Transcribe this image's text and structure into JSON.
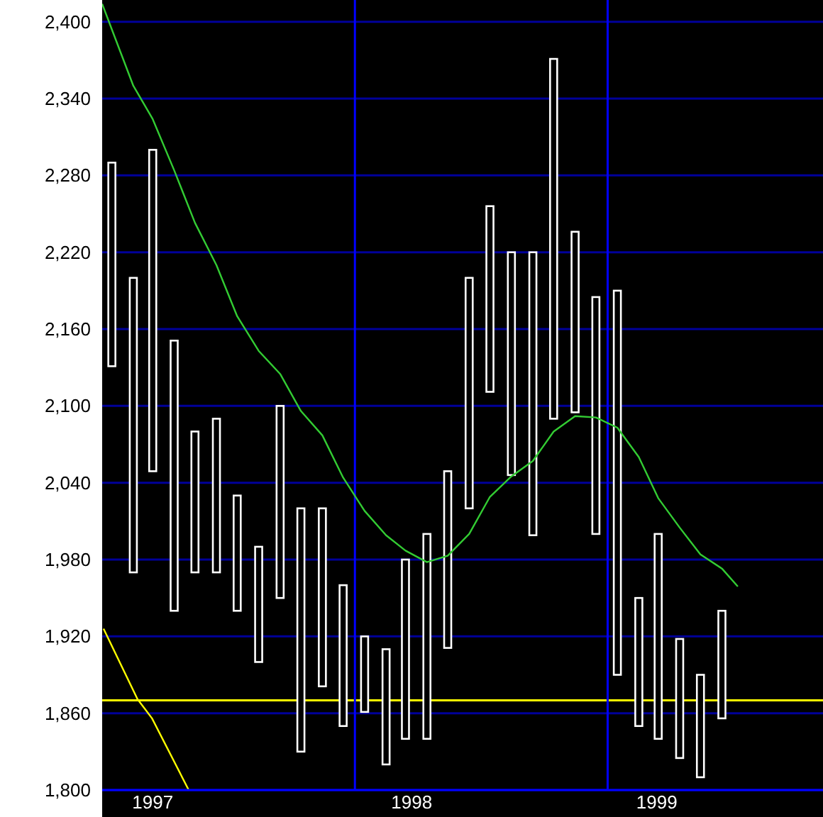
{
  "chart_data": {
    "type": "bar",
    "xlim": [
      "1997-01-01",
      "1999-11-08"
    ],
    "xticks": [
      {
        "value": "1997-03-15",
        "label": "1997"
      },
      {
        "value": "1998-03-24",
        "label": "1998"
      },
      {
        "value": "1999-03-13",
        "label": "1999"
      }
    ],
    "ylim": [
      1800,
      2417
    ],
    "yticks": [
      {
        "value": 1800,
        "label": "1,800"
      },
      {
        "value": 1860,
        "label": "1,860"
      },
      {
        "value": 1920,
        "label": "1,920"
      },
      {
        "value": 1980,
        "label": "1,980"
      },
      {
        "value": 2040,
        "label": "2,040"
      },
      {
        "value": 2100,
        "label": "2,100"
      },
      {
        "value": 2160,
        "label": "2,160"
      },
      {
        "value": 2220,
        "label": "2,220"
      },
      {
        "value": 2280,
        "label": "2,280"
      },
      {
        "value": 2340,
        "label": "2,340"
      },
      {
        "value": 2400,
        "label": "2,400"
      }
    ],
    "grid": "y",
    "ref_lines": [
      {
        "axis": "y",
        "value": 1870,
        "color": "#ffff00"
      },
      {
        "axis": "x",
        "value": "1998-01-01",
        "color": "#0000ff"
      },
      {
        "axis": "x",
        "value": "1999-01-01",
        "color": "#0000ff"
      }
    ],
    "series": [
      {
        "color": "#ffffff",
        "x": [
          "1997-01-15",
          "1997-02-15",
          "1997-03-15",
          "1997-04-15",
          "1997-05-15",
          "1997-06-15",
          "1997-07-15",
          "1997-08-15",
          "1997-09-15",
          "1997-10-15",
          "1997-11-15",
          "1997-12-15",
          "1998-01-15",
          "1998-02-15",
          "1998-03-15",
          "1998-04-15",
          "1998-05-15",
          "1998-06-15",
          "1998-07-15",
          "1998-08-15",
          "1998-09-15",
          "1998-10-15",
          "1998-11-15",
          "1998-12-15",
          "1999-01-15",
          "1999-02-15",
          "1999-03-15",
          "1999-04-15",
          "1999-05-15",
          "1999-06-15"
        ],
        "base": [
          2131,
          1970,
          2049,
          1940,
          1970,
          1970,
          1940,
          1900,
          1950,
          1830,
          1881,
          1850,
          1861,
          1820,
          1840,
          1840,
          1911,
          2020,
          2111,
          2046,
          1999,
          2090,
          2095,
          2000,
          1890,
          1850,
          1840,
          1825,
          1810,
          1856
        ],
        "values": [
          159,
          230,
          251,
          211,
          110,
          120,
          90,
          90,
          150,
          190,
          139,
          110,
          59,
          90,
          140,
          160,
          138,
          180,
          145,
          174,
          221,
          281,
          141,
          185,
          300,
          100,
          160,
          93,
          80,
          84
        ]
      },
      {
        "type": "line",
        "color": "#33cc33",
        "x": [
          "1997-01-01",
          "1997-01-15",
          "1997-02-15",
          "1997-03-15",
          "1997-04-15",
          "1997-05-15",
          "1997-06-15",
          "1997-07-15",
          "1997-08-15",
          "1997-09-15",
          "1997-10-15",
          "1997-11-15",
          "1997-12-15",
          "1998-01-15",
          "1998-02-15",
          "1998-03-15",
          "1998-04-15",
          "1998-05-15",
          "1998-06-15",
          "1998-07-15",
          "1998-08-15",
          "1998-09-15",
          "1998-10-15",
          "1998-11-15",
          "1998-12-15",
          "1999-01-15",
          "1999-02-15",
          "1999-03-15",
          "1999-04-15",
          "1999-05-15",
          "1999-06-15",
          "1999-07-08"
        ],
        "values": [
          2414,
          2394,
          2350,
          2324,
          2284,
          2243,
          2210,
          2170,
          2143,
          2125,
          2096,
          2077,
          2044,
          2018,
          1999,
          1987,
          1978,
          1983,
          2000,
          2029,
          2045,
          2057,
          2080,
          2092,
          2091,
          2083,
          2060,
          2028,
          2005,
          1984,
          1973,
          1959
        ]
      },
      {
        "type": "line",
        "color": "#ffff00",
        "x": [
          "1997-01-03",
          "1997-02-21",
          "1997-03-14",
          "1997-05-06"
        ],
        "values": [
          1926,
          1871,
          1856,
          1800
        ]
      }
    ]
  }
}
